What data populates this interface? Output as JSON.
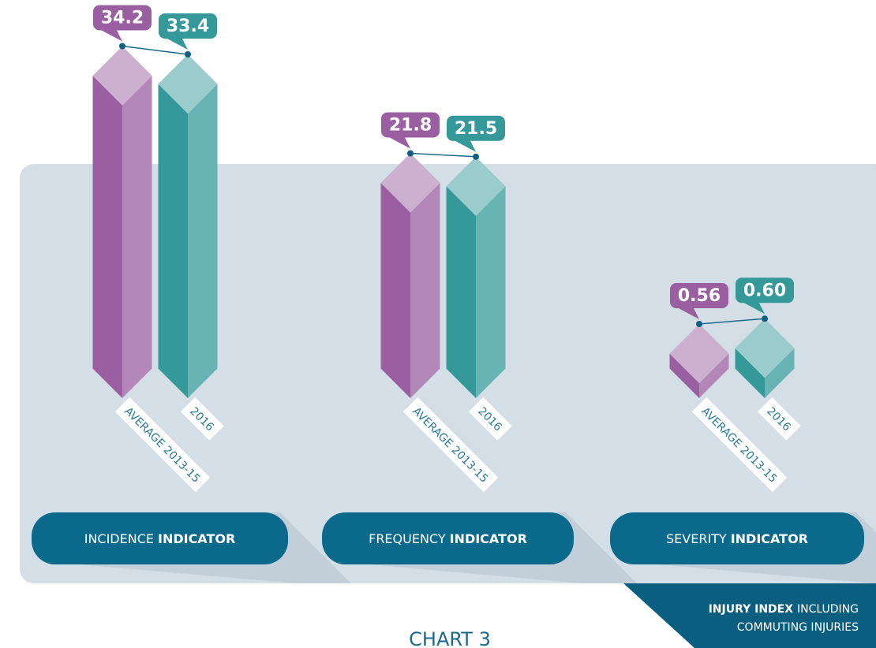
{
  "chart_data": [
    {
      "type": "bar",
      "title": "INCIDENCE",
      "title_bold": "INDICATOR",
      "categories": [
        "AVERAGE 2013-15",
        "2016"
      ],
      "values": [
        34.2,
        33.4
      ],
      "colors": [
        "#9a5fa0",
        "#35999a"
      ],
      "ylim": [
        0,
        36
      ]
    },
    {
      "type": "bar",
      "title": "FREQUENCY",
      "title_bold": "INDICATOR",
      "categories": [
        "AVERAGE 2013-15",
        "2016"
      ],
      "values": [
        21.8,
        21.5
      ],
      "colors": [
        "#9a5fa0",
        "#35999a"
      ],
      "ylim": [
        0,
        33
      ]
    },
    {
      "type": "bar",
      "title": "SEVERITY",
      "title_bold": "INDICATOR",
      "categories": [
        "AVERAGE 2013-15",
        "2016"
      ],
      "values": [
        0.56,
        0.6
      ],
      "value_labels": [
        "0.56",
        "0.60"
      ],
      "colors": [
        "#9a5fa0",
        "#35999a"
      ],
      "ylim": [
        0,
        2.8
      ]
    }
  ],
  "footnote": {
    "bold": "INJURY INDEX",
    "lines": [
      "INCLUDING",
      "COMMUTING INJURIES"
    ]
  },
  "caption": "CHART 3"
}
